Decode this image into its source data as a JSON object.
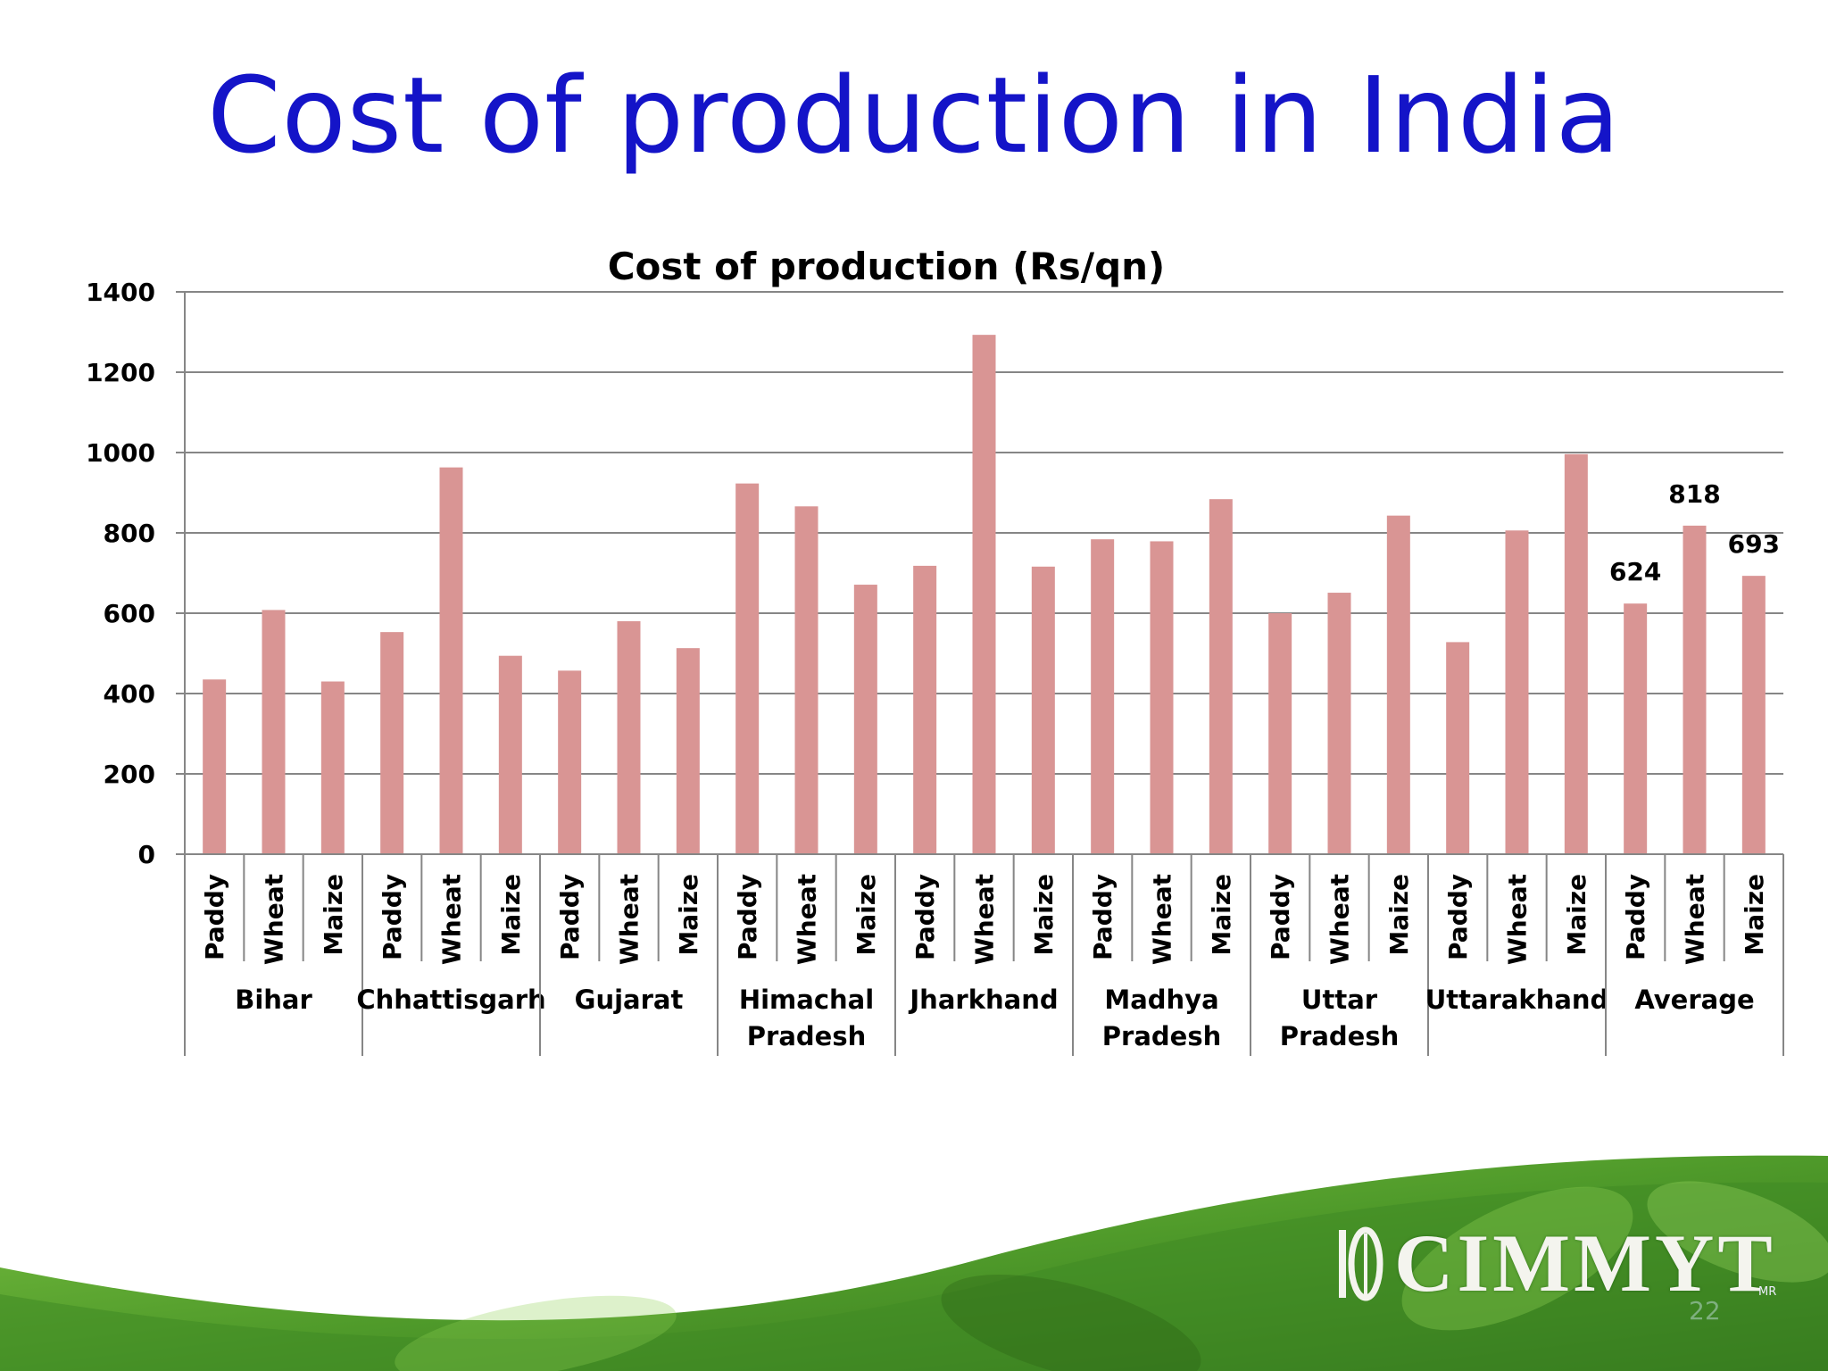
{
  "slide": {
    "title": "Cost of production in India",
    "logo_text": "CIMMYT",
    "logo_mark": "MR",
    "page_number": "22"
  },
  "colors": {
    "title": "#1414c8",
    "bar": "#d99594",
    "grid": "#868686",
    "footer_green": "#4f9a2a"
  },
  "chart_data": {
    "type": "bar",
    "title": "Cost of production (Rs/qn)",
    "xlabel": "",
    "ylabel": "",
    "ylim": [
      0,
      1400
    ],
    "yticks": [
      0,
      200,
      400,
      600,
      800,
      1000,
      1200,
      1400
    ],
    "grid": true,
    "groups": [
      {
        "name": "Bihar",
        "crops": [
          "Paddy",
          "Wheat",
          "Maize"
        ],
        "values": [
          435,
          608,
          430
        ]
      },
      {
        "name": "Chhattisgarh",
        "crops": [
          "Paddy",
          "Wheat",
          "Maize"
        ],
        "values": [
          553,
          963,
          494
        ]
      },
      {
        "name": "Gujarat",
        "crops": [
          "Paddy",
          "Wheat",
          "Maize"
        ],
        "values": [
          457,
          580,
          513
        ]
      },
      {
        "name": "Himachal Pradesh",
        "crops": [
          "Paddy",
          "Wheat",
          "Maize"
        ],
        "values": [
          923,
          866,
          671
        ]
      },
      {
        "name": "Jharkhand",
        "crops": [
          "Paddy",
          "Wheat",
          "Maize"
        ],
        "values": [
          718,
          1293,
          716
        ]
      },
      {
        "name": "Madhya Pradesh",
        "crops": [
          "Paddy",
          "Wheat",
          "Maize"
        ],
        "values": [
          784,
          779,
          884
        ]
      },
      {
        "name": "Uttar Pradesh",
        "crops": [
          "Paddy",
          "Wheat",
          "Maize"
        ],
        "values": [
          600,
          651,
          843
        ]
      },
      {
        "name": "Uttarakhand",
        "crops": [
          "Paddy",
          "Wheat",
          "Maize"
        ],
        "values": [
          528,
          806,
          996
        ]
      },
      {
        "name": "Average",
        "crops": [
          "Paddy",
          "Wheat",
          "Maize"
        ],
        "values": [
          624,
          818,
          693
        ],
        "data_labels": [
          "624",
          "818",
          "693"
        ]
      }
    ]
  }
}
